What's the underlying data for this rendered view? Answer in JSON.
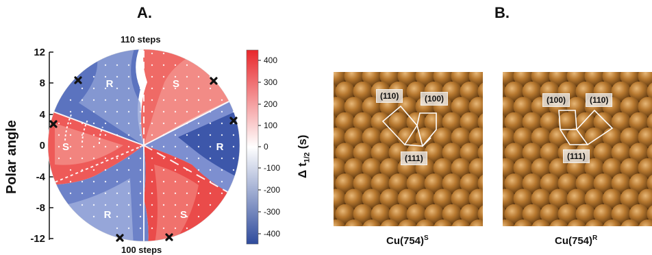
{
  "panels": {
    "a_label": "A.",
    "b_label": "B."
  },
  "polar_plot": {
    "top_label": "110 steps",
    "bottom_label": "100 steps",
    "y_axis_label": "Polar angle",
    "y_ticks": [
      "12",
      "8",
      "4",
      "0",
      "-4",
      "-8",
      "-12"
    ],
    "region_labels": [
      "R",
      "S",
      "S",
      "R",
      "R",
      "S"
    ],
    "colorbar": {
      "title": "Δ t",
      "title_sub": "1/2",
      "title_unit": "(s)",
      "ticks": [
        "400",
        "300",
        "200",
        "100",
        "0",
        "-100",
        "-200",
        "-300",
        "-400"
      ],
      "high_color": "#e8272b",
      "mid_color": "#ffffff",
      "low_color": "#2f4b9c"
    }
  },
  "crystals": {
    "s": {
      "labels": [
        "(110)",
        "(100)",
        "(111)"
      ],
      "caption_base": "Cu(754)",
      "caption_sup": "S"
    },
    "r": {
      "labels": [
        "(100)",
        "(110)",
        "(111)"
      ],
      "caption_base": "Cu(754)",
      "caption_sup": "R"
    }
  }
}
